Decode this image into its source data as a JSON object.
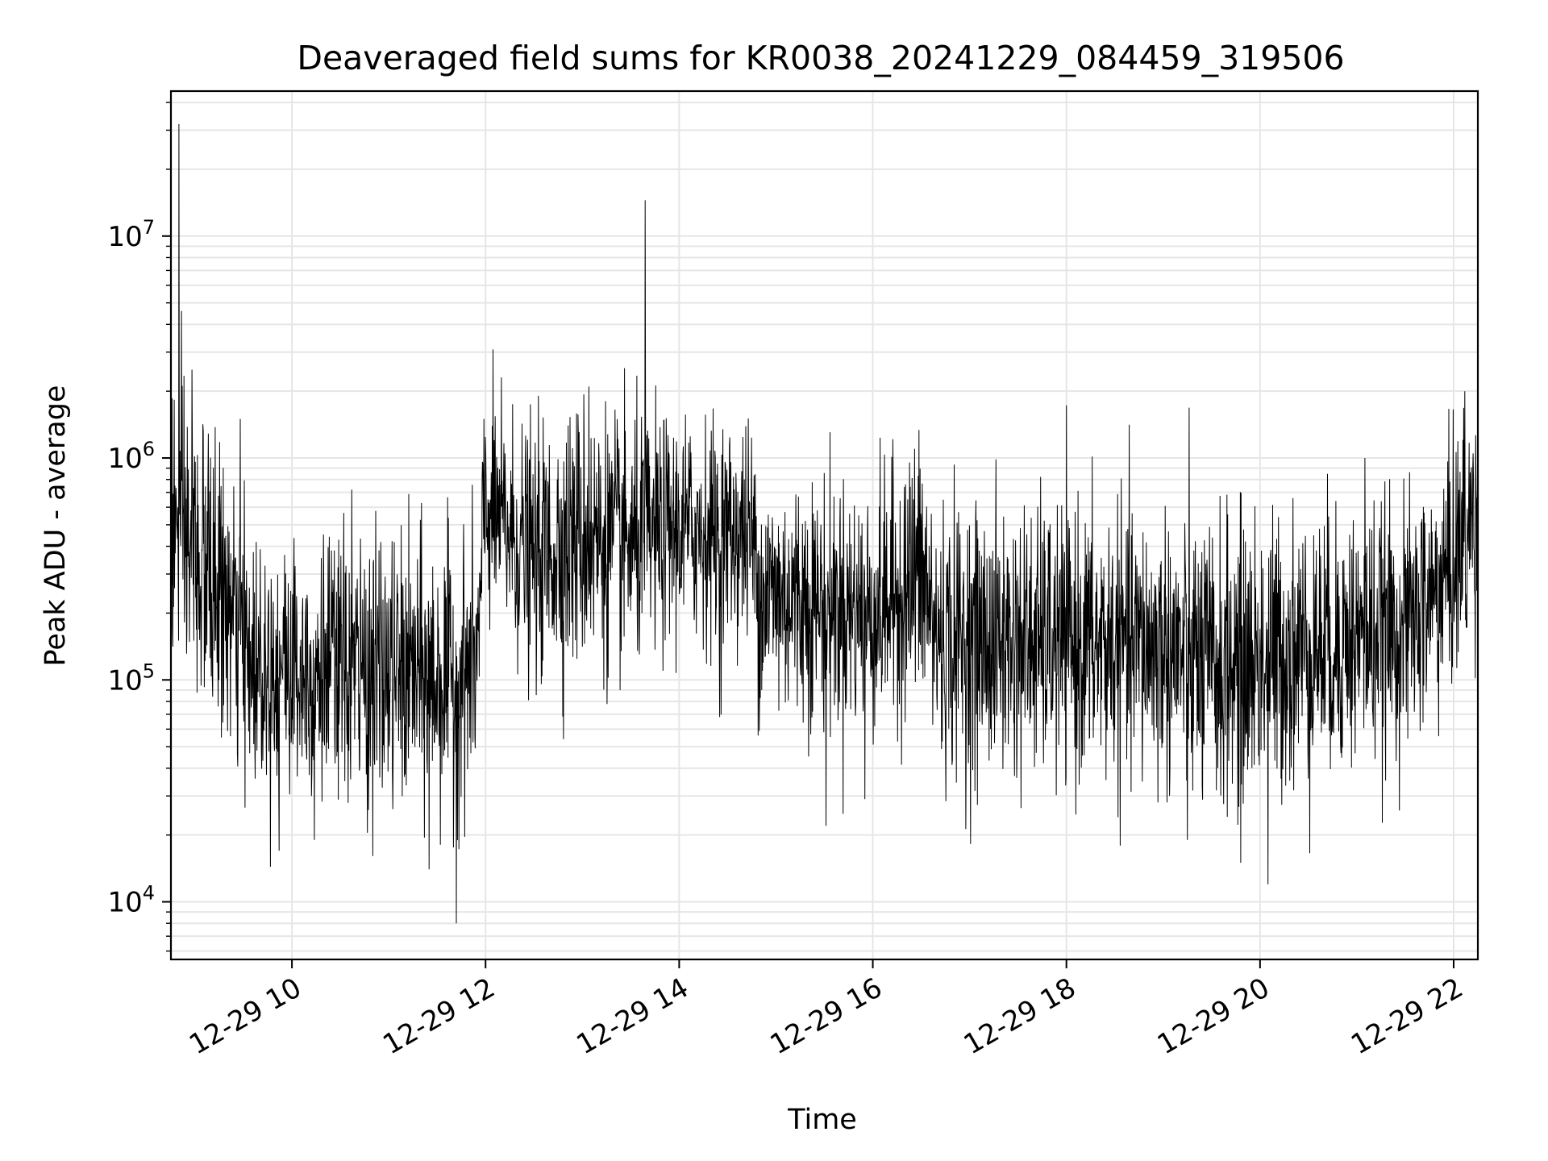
{
  "chart_data": {
    "type": "line",
    "title": "Deaveraged field sums for KR0038_20241229_084459_319506",
    "xlabel": "Time",
    "ylabel": "Peak ADU - average",
    "x_axis": {
      "kind": "datetime",
      "range": [
        "2024-12-29T08:45",
        "2024-12-29T22:15"
      ],
      "ticks": [
        {
          "t": "2024-12-29T10:00",
          "label": "12-29 10"
        },
        {
          "t": "2024-12-29T12:00",
          "label": "12-29 12"
        },
        {
          "t": "2024-12-29T14:00",
          "label": "12-29 14"
        },
        {
          "t": "2024-12-29T16:00",
          "label": "12-29 16"
        },
        {
          "t": "2024-12-29T18:00",
          "label": "12-29 18"
        },
        {
          "t": "2024-12-29T20:00",
          "label": "12-29 20"
        },
        {
          "t": "2024-12-29T22:00",
          "label": "12-29 22"
        }
      ]
    },
    "y_axis": {
      "scale": "log",
      "range": [
        5500,
        45000000
      ],
      "ticks": [
        {
          "value": 10000,
          "base": "10",
          "exp": "4"
        },
        {
          "value": 100000,
          "base": "10",
          "exp": "5"
        },
        {
          "value": 1000000,
          "base": "10",
          "exp": "6"
        },
        {
          "value": 10000000,
          "base": "10",
          "exp": "7"
        }
      ]
    },
    "grid": true,
    "line_color": "#000000",
    "grid_color": "#e6e6e6",
    "trend": [
      {
        "t": "2024-12-29T08:45",
        "v": 500000,
        "sigma": 0.65
      },
      {
        "t": "2024-12-29T09:15",
        "v": 250000,
        "sigma": 0.55
      },
      {
        "t": "2024-12-29T09:35",
        "v": 120000,
        "sigma": 0.5
      },
      {
        "t": "2024-12-29T10:30",
        "v": 110000,
        "sigma": 0.55
      },
      {
        "t": "2024-12-29T11:40",
        "v": 100000,
        "sigma": 0.55
      },
      {
        "t": "2024-12-29T11:55",
        "v": 120000,
        "sigma": 0.5
      },
      {
        "t": "2024-12-29T12:00",
        "v": 600000,
        "sigma": 0.45
      },
      {
        "t": "2024-12-29T12:30",
        "v": 350000,
        "sigma": 0.5
      },
      {
        "t": "2024-12-29T13:00",
        "v": 450000,
        "sigma": 0.55
      },
      {
        "t": "2024-12-29T13:30",
        "v": 400000,
        "sigma": 0.5
      },
      {
        "t": "2024-12-29T14:00",
        "v": 480000,
        "sigma": 0.45
      },
      {
        "t": "2024-12-29T14:45",
        "v": 450000,
        "sigma": 0.45
      },
      {
        "t": "2024-12-29T14:50",
        "v": 250000,
        "sigma": 0.5
      },
      {
        "t": "2024-12-29T16:00",
        "v": 200000,
        "sigma": 0.5
      },
      {
        "t": "2024-12-29T16:30",
        "v": 300000,
        "sigma": 0.55
      },
      {
        "t": "2024-12-29T16:40",
        "v": 150000,
        "sigma": 0.55
      },
      {
        "t": "2024-12-29T19:00",
        "v": 140000,
        "sigma": 0.55
      },
      {
        "t": "2024-12-29T19:30",
        "v": 110000,
        "sigma": 0.6
      },
      {
        "t": "2024-12-29T20:30",
        "v": 140000,
        "sigma": 0.55
      },
      {
        "t": "2024-12-29T21:30",
        "v": 170000,
        "sigma": 0.5
      },
      {
        "t": "2024-12-29T21:50",
        "v": 250000,
        "sigma": 0.5
      },
      {
        "t": "2024-12-29T22:15",
        "v": 550000,
        "sigma": 0.55
      }
    ],
    "spikes": [
      {
        "t": "2024-12-29T08:50",
        "v": 32000000
      },
      {
        "t": "2024-12-29T08:58",
        "v": 2500000
      },
      {
        "t": "2024-12-29T09:28",
        "v": 1500000
      },
      {
        "t": "2024-12-29T09:52",
        "v": 17000
      },
      {
        "t": "2024-12-29T10:14",
        "v": 19000
      },
      {
        "t": "2024-12-29T10:37",
        "v": 720000
      },
      {
        "t": "2024-12-29T11:25",
        "v": 14000
      },
      {
        "t": "2024-12-29T11:42",
        "v": 8000
      },
      {
        "t": "2024-12-29T11:59",
        "v": 1500000
      },
      {
        "t": "2024-12-29T13:04",
        "v": 2100000
      },
      {
        "t": "2024-12-29T13:39",
        "v": 14500000
      },
      {
        "t": "2024-12-29T14:25",
        "v": 68000
      },
      {
        "t": "2024-12-29T15:31",
        "v": 22000
      },
      {
        "t": "2024-12-29T15:55",
        "v": 29000
      },
      {
        "t": "2024-12-29T16:26",
        "v": 1100000
      },
      {
        "t": "2024-12-29T19:15",
        "v": 19000
      },
      {
        "t": "2024-12-29T19:48",
        "v": 15000
      },
      {
        "t": "2024-12-29T20:05",
        "v": 12000
      },
      {
        "t": "2024-12-29T21:05",
        "v": 1000000
      },
      {
        "t": "2024-12-29T22:07",
        "v": 2000000
      }
    ]
  }
}
